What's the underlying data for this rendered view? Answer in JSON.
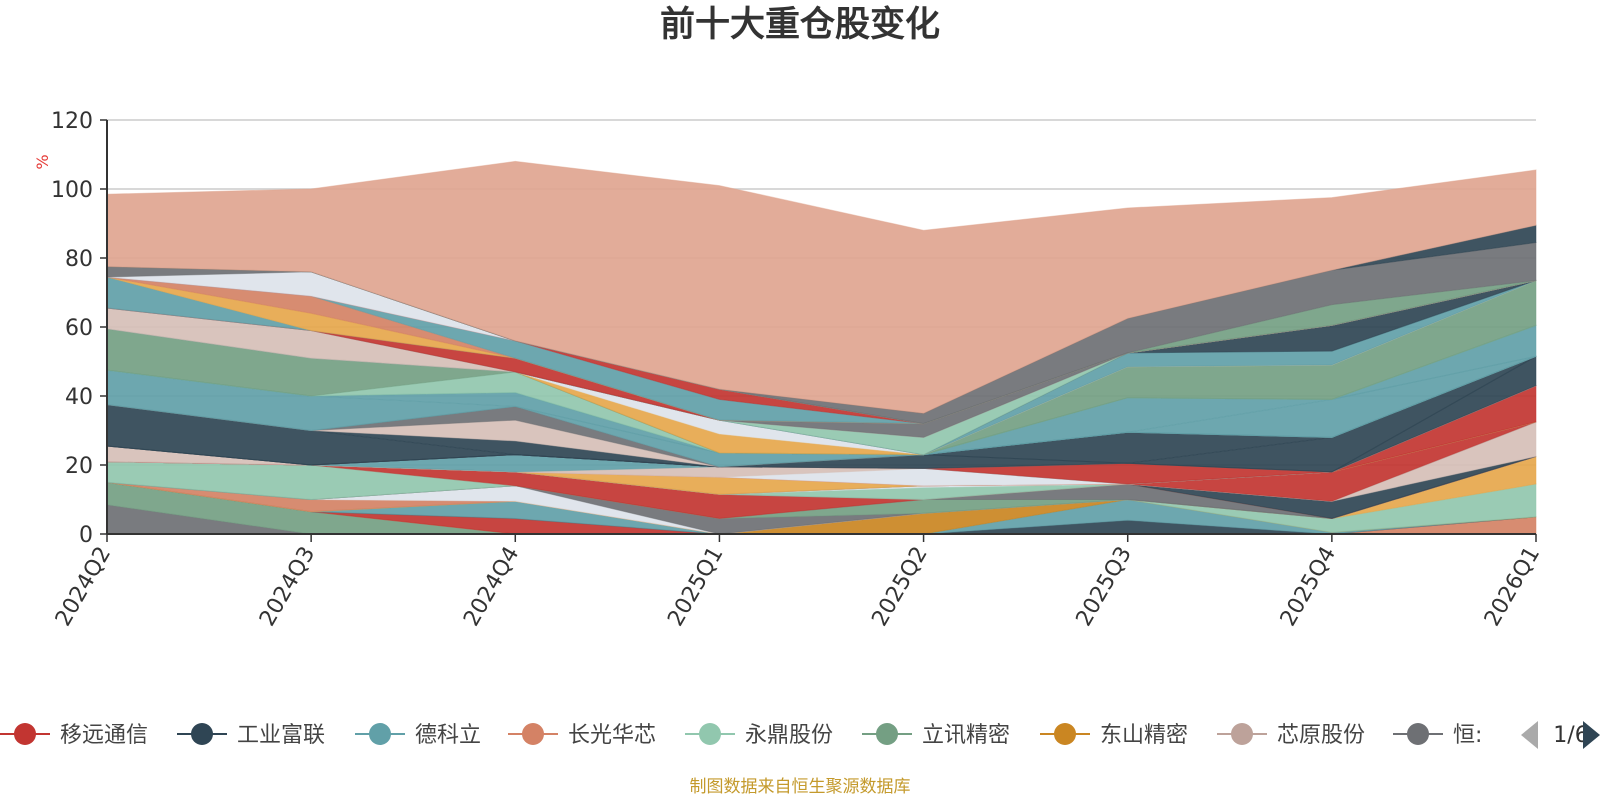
{
  "title": "前十大重仓股变化",
  "source": "制图数据来自恒生聚源数据库",
  "legend_pager": "1/6",
  "colors": {
    "axis": "#333333",
    "grid": "#cccccc",
    "pager_active": "#2f4554",
    "pager_inactive": "#aaaaaa"
  },
  "legend": [
    {
      "name": "移远通信",
      "color": "#c23531"
    },
    {
      "name": "工业富联",
      "color": "#2f4554"
    },
    {
      "name": "德科立",
      "color": "#61a0a8"
    },
    {
      "name": "长光华芯",
      "color": "#d48265"
    },
    {
      "name": "永鼎股份",
      "color": "#91c7ae"
    },
    {
      "name": "立讯精密",
      "color": "#749f83"
    },
    {
      "name": "东山精密",
      "color": "#ca8622"
    },
    {
      "name": "芯原股份",
      "color": "#bda29a"
    },
    {
      "name": "恒:",
      "color": "#6e7074"
    }
  ],
  "chart_data": {
    "type": "area",
    "stacked": true,
    "title": "前十大重仓股变化",
    "ylabel": "%",
    "ylim": [
      0,
      120
    ],
    "yticks": [
      0,
      20,
      40,
      60,
      80,
      100,
      120
    ],
    "categories": [
      "2024Q2",
      "2024Q3",
      "2024Q4",
      "2025Q1",
      "2025Q2",
      "2025Q3",
      "2025Q4",
      "2026Q1"
    ],
    "series": [
      {
        "color": "#6e7074",
        "values": [
          8.5,
          0,
          0,
          0,
          0,
          0,
          0,
          0
        ]
      },
      {
        "color": "#749f83",
        "values": [
          6.5,
          6.5,
          0,
          0,
          0,
          0,
          0,
          0
        ]
      },
      {
        "color": "#d48265",
        "values": [
          0,
          0,
          0,
          0,
          0,
          0,
          0,
          5
        ]
      },
      {
        "color": "#c23531",
        "values": [
          0,
          0,
          4.5,
          0,
          0,
          0,
          0,
          0
        ]
      },
      {
        "color": "#2f4554",
        "values": [
          0,
          0,
          0,
          0,
          0,
          4,
          0,
          0
        ]
      },
      {
        "color": "#61a0a8",
        "values": [
          0,
          0,
          5,
          0,
          0,
          6,
          0.5,
          0
        ]
      },
      {
        "color": "#ca8622",
        "values": [
          0,
          0,
          0,
          0,
          6,
          0,
          0,
          0
        ]
      },
      {
        "color": "#91c7ae",
        "values": [
          0,
          0,
          0,
          0,
          0,
          0,
          4,
          9.5
        ]
      },
      {
        "color": "#e6a74c",
        "values": [
          0,
          0,
          0,
          0,
          0,
          0,
          0,
          8
        ]
      },
      {
        "color": "#d48265",
        "values": [
          0,
          3.5,
          0,
          0,
          0,
          0,
          0,
          0
        ]
      },
      {
        "color": "#dde3ea",
        "values": [
          0,
          0,
          4.5,
          0,
          0,
          0,
          0,
          0
        ]
      },
      {
        "color": "#6e7074",
        "values": [
          0,
          0,
          0,
          4.5,
          0,
          0,
          0,
          0
        ]
      },
      {
        "color": "#749f83",
        "values": [
          0,
          0,
          0,
          0,
          4,
          0,
          0,
          0
        ]
      },
      {
        "color": "#6e7074",
        "values": [
          0,
          0,
          0,
          0,
          0,
          4.5,
          0,
          0
        ]
      },
      {
        "color": "#91c7ae",
        "values": [
          6,
          10,
          0,
          0,
          0,
          0,
          0,
          0
        ]
      },
      {
        "color": "#c23531",
        "values": [
          0,
          0,
          4,
          7,
          0,
          0,
          0,
          0
        ]
      },
      {
        "color": "#2f4554",
        "values": [
          0,
          0,
          0,
          0,
          0,
          0,
          5,
          0
        ]
      },
      {
        "color": "#d6bfb7",
        "values": [
          0,
          0,
          0,
          0,
          0,
          0,
          0,
          10
        ]
      },
      {
        "color": "#91c7ae",
        "values": [
          0,
          0,
          0,
          0,
          3.5,
          0,
          0,
          0
        ]
      },
      {
        "color": "#dde3ea",
        "values": [
          0,
          0,
          0,
          0,
          0.5,
          0,
          0,
          0
        ]
      },
      {
        "color": "#c23531",
        "values": [
          0,
          0,
          0,
          0,
          0,
          0,
          8.5,
          0
        ]
      },
      {
        "color": "#d48265",
        "values": [
          0,
          0,
          0,
          0,
          0,
          0,
          0,
          0
        ]
      },
      {
        "color": "#91c7ae",
        "values": [
          0,
          0,
          0,
          0,
          0,
          0,
          0,
          0
        ]
      },
      {
        "color": "#e6a74c",
        "values": [
          0,
          0,
          0,
          5,
          0,
          0,
          0,
          0
        ]
      },
      {
        "color": "#c23531",
        "values": [
          0,
          0,
          0,
          0,
          0,
          0,
          0,
          10.5
        ]
      },
      {
        "color": "#dde3ea",
        "values": [
          0,
          0,
          0,
          0,
          5,
          0,
          0,
          0
        ]
      },
      {
        "color": "#d6bfb7",
        "values": [
          0,
          0,
          0,
          3,
          0,
          0,
          0,
          0
        ]
      },
      {
        "color": "#61a0a8",
        "values": [
          0,
          0,
          5,
          0,
          0,
          0,
          0,
          0
        ]
      },
      {
        "color": "#c23531",
        "values": [
          0,
          0,
          0,
          0,
          0,
          6,
          0,
          0
        ]
      },
      {
        "color": "#d6bfb7",
        "values": [
          4.5,
          0,
          0,
          0,
          0,
          0,
          0,
          0
        ]
      },
      {
        "color": "#2f4554",
        "values": [
          0,
          0,
          0,
          0,
          0,
          0,
          0,
          8.5
        ]
      },
      {
        "color": "#2f4554",
        "values": [
          0,
          0,
          0,
          0,
          4,
          0,
          0,
          0
        ]
      },
      {
        "color": "#2f4554",
        "values": [
          0,
          0,
          0,
          0,
          0,
          0,
          10,
          0
        ]
      },
      {
        "color": "#2f4554",
        "values": [
          0,
          0,
          0,
          0,
          0,
          9,
          0,
          0
        ]
      },
      {
        "color": "#2f4554",
        "values": [
          12,
          10,
          0,
          0,
          0,
          0,
          0,
          0
        ]
      },
      {
        "color": "#2f4554",
        "values": [
          0,
          0,
          4,
          0,
          0,
          0,
          0,
          0
        ]
      },
      {
        "color": "#d6bfb7",
        "values": [
          0,
          0,
          6,
          0,
          0,
          0,
          0,
          0
        ]
      },
      {
        "color": "#6e7074",
        "values": [
          0,
          0,
          4,
          0,
          0,
          0,
          0,
          0
        ]
      },
      {
        "color": "#61a0a8",
        "values": [
          0,
          0,
          0,
          4,
          0,
          0,
          0,
          0
        ]
      },
      {
        "color": "#61a0a8",
        "values": [
          10,
          10,
          0,
          0,
          0,
          0,
          0,
          0
        ]
      },
      {
        "color": "#61a0a8",
        "values": [
          0,
          0,
          4,
          0,
          0,
          0,
          0,
          0
        ]
      },
      {
        "color": "#61a0a8",
        "values": [
          0,
          0,
          0,
          0,
          0,
          0,
          11,
          0
        ]
      },
      {
        "color": "#61a0a8",
        "values": [
          0,
          0,
          0,
          0,
          0,
          10,
          0,
          0
        ]
      },
      {
        "color": "#61a0a8",
        "values": [
          0,
          0,
          0,
          0,
          0,
          0,
          0,
          9
        ]
      },
      {
        "color": "#91c7ae",
        "values": [
          0,
          0,
          6,
          0,
          0,
          0,
          0,
          0
        ]
      },
      {
        "color": "#749f83",
        "values": [
          12,
          11,
          0,
          0,
          0,
          0,
          0,
          0
        ]
      },
      {
        "color": "#749f83",
        "values": [
          0,
          0,
          0,
          0,
          0,
          9,
          10,
          13
        ]
      },
      {
        "color": "#749f83",
        "values": [
          0,
          0,
          0,
          0,
          0,
          0,
          0,
          0
        ]
      },
      {
        "color": "#e6a74c",
        "values": [
          0,
          0,
          0,
          5.5,
          0,
          0,
          0,
          0
        ]
      },
      {
        "color": "#dde3ea",
        "values": [
          0,
          0,
          0,
          4,
          0,
          0,
          0,
          0
        ]
      },
      {
        "color": "#61a0a8",
        "values": [
          0,
          0,
          0,
          0,
          0,
          4,
          4,
          0
        ]
      },
      {
        "color": "#2f4554",
        "values": [
          0,
          0,
          0,
          0,
          0,
          0,
          7.5,
          0
        ]
      },
      {
        "color": "#91c7ae",
        "values": [
          0,
          0,
          0,
          0,
          5,
          0,
          0,
          0
        ]
      },
      {
        "color": "#d6bfb7",
        "values": [
          6,
          8,
          0,
          0,
          0,
          0,
          0,
          0
        ]
      },
      {
        "color": "#6e7074",
        "values": [
          0,
          0,
          0,
          0,
          4,
          0,
          0,
          0
        ]
      },
      {
        "color": "#c23531",
        "values": [
          0,
          0,
          4,
          0,
          0,
          0,
          0,
          0
        ]
      },
      {
        "color": "#61a0a8",
        "values": [
          9,
          0,
          0,
          0,
          0,
          0,
          0,
          0
        ]
      },
      {
        "color": "#e6a74c",
        "values": [
          0,
          5,
          0,
          0,
          0,
          0,
          0,
          0
        ]
      },
      {
        "color": "#d48265",
        "values": [
          0,
          5,
          0,
          0,
          0,
          0,
          0,
          0
        ]
      },
      {
        "color": "#61a0a8",
        "values": [
          0,
          0,
          5,
          6,
          0,
          0,
          0,
          0
        ]
      },
      {
        "color": "#c23531",
        "values": [
          0,
          0,
          0,
          3,
          0,
          0,
          0,
          0
        ]
      },
      {
        "color": "#dde3ea",
        "values": [
          0,
          7,
          0,
          0,
          0,
          0,
          0,
          0
        ]
      },
      {
        "color": "#6e7074",
        "values": [
          3,
          0,
          0,
          0,
          0,
          0,
          0,
          0
        ]
      },
      {
        "color": "#749f83",
        "values": [
          0,
          0,
          0,
          0,
          0,
          0,
          6,
          0
        ]
      },
      {
        "color": "#6e7074",
        "values": [
          0,
          0,
          0,
          0,
          3,
          10,
          10,
          11
        ]
      },
      {
        "color": "#2f4554",
        "values": [
          0,
          0,
          0,
          0,
          0,
          0,
          0,
          5
        ]
      },
      {
        "color": "#e0a590",
        "values": [
          21,
          24,
          52,
          59,
          53,
          32,
          21,
          16
        ]
      }
    ]
  }
}
